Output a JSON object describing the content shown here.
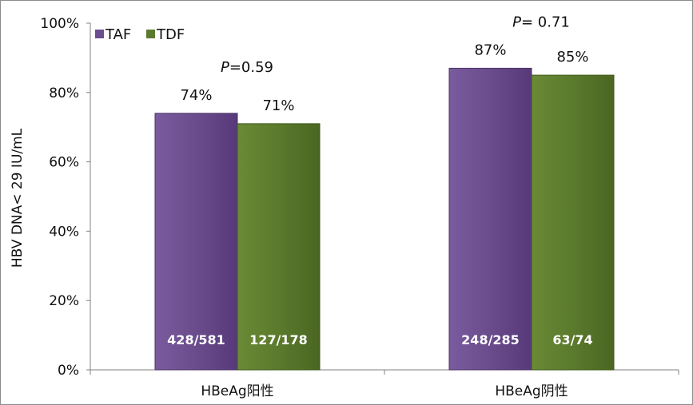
{
  "chart_data": {
    "type": "bar",
    "ylabel": "HBV DNA< 29 IU/mL",
    "ylim": [
      0,
      100
    ],
    "yticks": [
      0,
      20,
      40,
      60,
      80,
      100
    ],
    "ytick_suffix": "%",
    "categories": [
      "HBeAg阳性",
      "HBeAg阴性"
    ],
    "series": [
      {
        "name": "TAF",
        "color": "#6b4e8f",
        "values": [
          74,
          87
        ],
        "value_labels": [
          "74%",
          "87%"
        ],
        "counts": [
          "428/581",
          "248/285"
        ]
      },
      {
        "name": "TDF",
        "color": "#5c7a2e",
        "values": [
          71,
          85
        ],
        "value_labels": [
          "71%",
          "85%"
        ],
        "counts": [
          "127/178",
          "63/74"
        ]
      }
    ],
    "p_values": [
      {
        "prefix": "P",
        "text": "=0.59"
      },
      {
        "prefix": "P",
        "text": "= 0.71"
      }
    ],
    "legend": "top-left",
    "grid": false
  }
}
